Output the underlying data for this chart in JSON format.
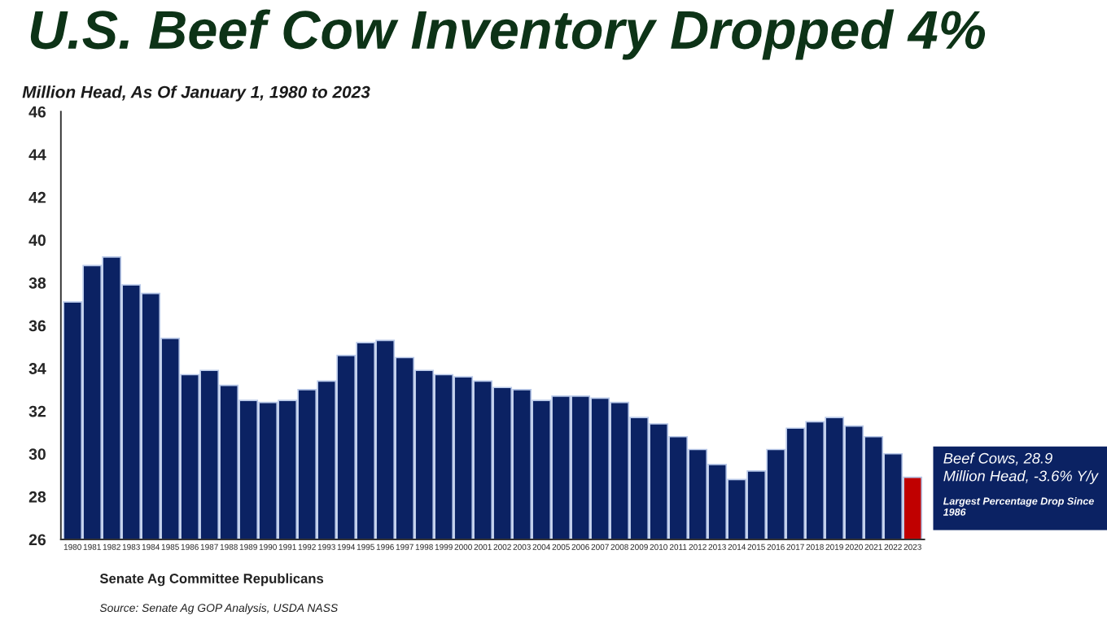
{
  "chart_data": {
    "type": "bar",
    "title": "U.S. Beef Cow Inventory Dropped 4%",
    "subtitle": "Million Head, As Of January 1, 1980 to 2023",
    "categories": [
      "1980",
      "1981",
      "1982",
      "1983",
      "1984",
      "1985",
      "1986",
      "1987",
      "1988",
      "1989",
      "1990",
      "1991",
      "1992",
      "1993",
      "1994",
      "1995",
      "1996",
      "1997",
      "1998",
      "1999",
      "2000",
      "2001",
      "2002",
      "2003",
      "2004",
      "2005",
      "2006",
      "2007",
      "2008",
      "2009",
      "2010",
      "2011",
      "2012",
      "2013",
      "2014",
      "2015",
      "2016",
      "2017",
      "2018",
      "2019",
      "2020",
      "2021",
      "2022",
      "2023"
    ],
    "values": [
      37.1,
      38.8,
      39.2,
      37.9,
      37.5,
      35.4,
      33.7,
      33.9,
      33.2,
      32.5,
      32.4,
      32.5,
      33.0,
      33.4,
      34.6,
      35.2,
      35.3,
      34.5,
      33.9,
      33.7,
      33.6,
      33.4,
      33.1,
      33.0,
      32.5,
      32.7,
      32.7,
      32.6,
      32.4,
      31.7,
      31.4,
      30.8,
      30.2,
      29.5,
      28.8,
      29.2,
      30.2,
      31.2,
      31.5,
      31.7,
      31.3,
      30.8,
      30.0,
      28.9
    ],
    "colors": [
      "#0b2263",
      "#0b2263",
      "#0b2263",
      "#0b2263",
      "#0b2263",
      "#0b2263",
      "#0b2263",
      "#0b2263",
      "#0b2263",
      "#0b2263",
      "#0b2263",
      "#0b2263",
      "#0b2263",
      "#0b2263",
      "#0b2263",
      "#0b2263",
      "#0b2263",
      "#0b2263",
      "#0b2263",
      "#0b2263",
      "#0b2263",
      "#0b2263",
      "#0b2263",
      "#0b2263",
      "#0b2263",
      "#0b2263",
      "#0b2263",
      "#0b2263",
      "#0b2263",
      "#0b2263",
      "#0b2263",
      "#0b2263",
      "#0b2263",
      "#0b2263",
      "#0b2263",
      "#0b2263",
      "#0b2263",
      "#0b2263",
      "#0b2263",
      "#0b2263",
      "#0b2263",
      "#0b2263",
      "#0b2263",
      "#c00000"
    ],
    "ylim": [
      26,
      46
    ],
    "yticks": [
      26,
      28,
      30,
      32,
      34,
      36,
      38,
      40,
      42,
      44,
      46
    ],
    "grid": false,
    "legend": false,
    "annotations": [
      "Beef Cows, 28.9\nMillion Head, -3.6% Y/y",
      "Largest Percentage Drop Since\n1986",
      "Senate Ag Committee Republicans",
      "Source: Senate Ag GOP Analysis, USDA NASS"
    ]
  }
}
